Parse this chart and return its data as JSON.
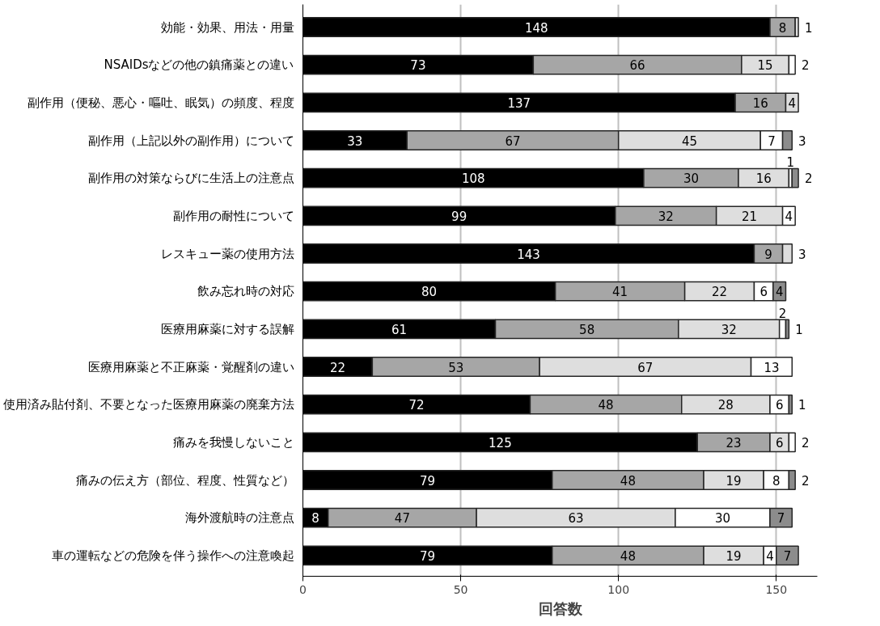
{
  "chart_data": {
    "type": "bar",
    "orientation": "horizontal",
    "stacked": true,
    "data_labels": true,
    "grid": "x",
    "xlabel": "回答数",
    "xlim": [
      0,
      163
    ],
    "xticks": [
      0,
      50,
      100,
      150
    ],
    "categories": [
      "効能・効果、用法・用量",
      "NSAIDsなどの他の鎮痛薬との違い",
      "副作用（便秘、悪心・嘔吐、眠気）の頻度、程度",
      "副作用（上記以外の副作用）について",
      "副作用の対策ならびに生活上の注意点",
      "副作用の耐性について",
      "レスキュー薬の使用方法",
      "飲み忘れ時の対応",
      "医療用麻薬に対する誤解",
      "医療用麻薬と不正麻薬・覚醒剤の違い",
      "使用済み貼付剤、不要となった医療用麻薬の廃棄方法",
      "痛みを我慢しないこと",
      "痛みの伝え方（部位、程度、性質など）",
      "海外渡航時の注意点",
      "車の運転などの危険を伴う操作への注意喚起"
    ],
    "series": [
      {
        "color": "#000000",
        "values": [
          148,
          73,
          137,
          33,
          108,
          99,
          143,
          80,
          61,
          22,
          72,
          125,
          79,
          8,
          79
        ]
      },
      {
        "color": "#a6a6a6",
        "values": [
          8,
          66,
          16,
          67,
          30,
          32,
          9,
          41,
          58,
          53,
          48,
          23,
          48,
          47,
          48
        ]
      },
      {
        "color": "#dedede",
        "values": [
          1,
          15,
          4,
          45,
          16,
          21,
          3,
          22,
          32,
          67,
          28,
          6,
          19,
          63,
          19
        ]
      },
      {
        "color": "#ffffff",
        "values": [
          null,
          2,
          null,
          7,
          1,
          4,
          null,
          6,
          2,
          13,
          6,
          2,
          8,
          30,
          4
        ]
      },
      {
        "color": "#8c8c8c",
        "values": [
          null,
          null,
          null,
          3,
          2,
          null,
          null,
          4,
          1,
          null,
          1,
          null,
          2,
          7,
          7
        ]
      }
    ]
  }
}
